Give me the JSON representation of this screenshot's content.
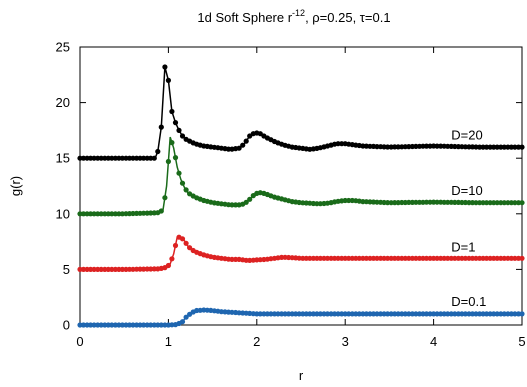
{
  "chart_data": {
    "type": "scatter",
    "title": "1d Soft Sphere r",
    "title_exponent": "-12",
    "title_rest": ", ρ=0.25, τ=0.1",
    "xlabel": "r",
    "ylabel": "g(r)",
    "xlim": [
      0,
      5
    ],
    "ylim": [
      0,
      25
    ],
    "x_ticks": [
      0,
      1,
      2,
      3,
      4,
      5
    ],
    "y_ticks": [
      0,
      5,
      10,
      15,
      20,
      25
    ],
    "grid": false,
    "legend": "inline labels at right of each curve",
    "series": [
      {
        "name": "D=20",
        "color": "#000000",
        "label_at": [
          4.2,
          16.7
        ],
        "points": [
          [
            0,
            15
          ],
          [
            0.5,
            15
          ],
          [
            0.85,
            15
          ],
          [
            0.88,
            15.6
          ],
          [
            0.92,
            17.8
          ],
          [
            0.96,
            23.2
          ],
          [
            1.0,
            22.0
          ],
          [
            1.04,
            19.2
          ],
          [
            1.08,
            18.2
          ],
          [
            1.12,
            17.5
          ],
          [
            1.16,
            17.0
          ],
          [
            1.2,
            16.7
          ],
          [
            1.3,
            16.3
          ],
          [
            1.4,
            16.1
          ],
          [
            1.5,
            16.0
          ],
          [
            1.6,
            15.9
          ],
          [
            1.7,
            15.8
          ],
          [
            1.8,
            15.9
          ],
          [
            1.86,
            16.3
          ],
          [
            1.92,
            17.0
          ],
          [
            1.98,
            17.3
          ],
          [
            2.04,
            17.2
          ],
          [
            2.1,
            16.9
          ],
          [
            2.2,
            16.5
          ],
          [
            2.3,
            16.2
          ],
          [
            2.4,
            16.0
          ],
          [
            2.5,
            15.9
          ],
          [
            2.6,
            15.8
          ],
          [
            2.7,
            15.9
          ],
          [
            2.8,
            16.1
          ],
          [
            2.9,
            16.3
          ],
          [
            3.0,
            16.3
          ],
          [
            3.1,
            16.2
          ],
          [
            3.2,
            16.1
          ],
          [
            3.5,
            16.0
          ],
          [
            4.0,
            16.1
          ],
          [
            4.5,
            16.0
          ],
          [
            5.0,
            16.0
          ]
        ]
      },
      {
        "name": "D=10",
        "color": "#1a6b1a",
        "label_at": [
          4.2,
          11.7
        ],
        "points": [
          [
            0,
            10
          ],
          [
            0.5,
            10
          ],
          [
            0.9,
            10.1
          ],
          [
            0.94,
            10.4
          ],
          [
            0.98,
            12.5
          ],
          [
            1.02,
            16.9
          ],
          [
            1.06,
            15.9
          ],
          [
            1.1,
            14.2
          ],
          [
            1.14,
            13.1
          ],
          [
            1.18,
            12.4
          ],
          [
            1.22,
            11.9
          ],
          [
            1.3,
            11.5
          ],
          [
            1.4,
            11.2
          ],
          [
            1.5,
            11.0
          ],
          [
            1.6,
            10.9
          ],
          [
            1.7,
            10.8
          ],
          [
            1.8,
            10.8
          ],
          [
            1.86,
            10.9
          ],
          [
            1.92,
            11.3
          ],
          [
            1.98,
            11.8
          ],
          [
            2.04,
            11.9
          ],
          [
            2.1,
            11.8
          ],
          [
            2.2,
            11.5
          ],
          [
            2.3,
            11.3
          ],
          [
            2.4,
            11.1
          ],
          [
            2.5,
            11.0
          ],
          [
            2.6,
            10.95
          ],
          [
            2.7,
            10.9
          ],
          [
            2.8,
            10.95
          ],
          [
            2.9,
            11.1
          ],
          [
            3.0,
            11.2
          ],
          [
            3.1,
            11.2
          ],
          [
            3.2,
            11.1
          ],
          [
            3.5,
            11.0
          ],
          [
            4.0,
            11.05
          ],
          [
            4.5,
            11.0
          ],
          [
            5.0,
            11.0
          ]
        ]
      },
      {
        "name": "D=1",
        "color": "#dd2222",
        "label_at": [
          4.2,
          6.6
        ],
        "points": [
          [
            0,
            5
          ],
          [
            0.5,
            5
          ],
          [
            0.9,
            5.05
          ],
          [
            0.98,
            5.2
          ],
          [
            1.02,
            5.5
          ],
          [
            1.06,
            6.4
          ],
          [
            1.1,
            7.9
          ],
          [
            1.14,
            7.9
          ],
          [
            1.18,
            7.6
          ],
          [
            1.22,
            7.1
          ],
          [
            1.26,
            6.8
          ],
          [
            1.3,
            6.6
          ],
          [
            1.4,
            6.3
          ],
          [
            1.5,
            6.1
          ],
          [
            1.6,
            6.0
          ],
          [
            1.7,
            5.9
          ],
          [
            1.8,
            5.9
          ],
          [
            1.9,
            5.8
          ],
          [
            2.0,
            5.85
          ],
          [
            2.1,
            5.9
          ],
          [
            2.2,
            6.0
          ],
          [
            2.3,
            6.1
          ],
          [
            2.4,
            6.05
          ],
          [
            2.5,
            6.0
          ],
          [
            2.6,
            6.0
          ],
          [
            3.0,
            6.0
          ],
          [
            3.5,
            6.0
          ],
          [
            4.0,
            6.0
          ],
          [
            4.5,
            6.0
          ],
          [
            5.0,
            6.0
          ]
        ]
      },
      {
        "name": "D=0.1",
        "color": "#1f66b0",
        "label_at": [
          4.2,
          1.7
        ],
        "points": [
          [
            0,
            0
          ],
          [
            0.5,
            0
          ],
          [
            1.0,
            0
          ],
          [
            1.1,
            0.05
          ],
          [
            1.16,
            0.3
          ],
          [
            1.2,
            0.7
          ],
          [
            1.26,
            1.1
          ],
          [
            1.32,
            1.3
          ],
          [
            1.4,
            1.35
          ],
          [
            1.5,
            1.3
          ],
          [
            1.6,
            1.2
          ],
          [
            1.7,
            1.15
          ],
          [
            1.8,
            1.1
          ],
          [
            1.9,
            1.05
          ],
          [
            2.0,
            1.0
          ],
          [
            2.2,
            1.0
          ],
          [
            2.5,
            1.0
          ],
          [
            3.0,
            1.0
          ],
          [
            3.5,
            1.0
          ],
          [
            4.0,
            1.0
          ],
          [
            4.5,
            1.0
          ],
          [
            5.0,
            1.0
          ]
        ]
      }
    ]
  }
}
